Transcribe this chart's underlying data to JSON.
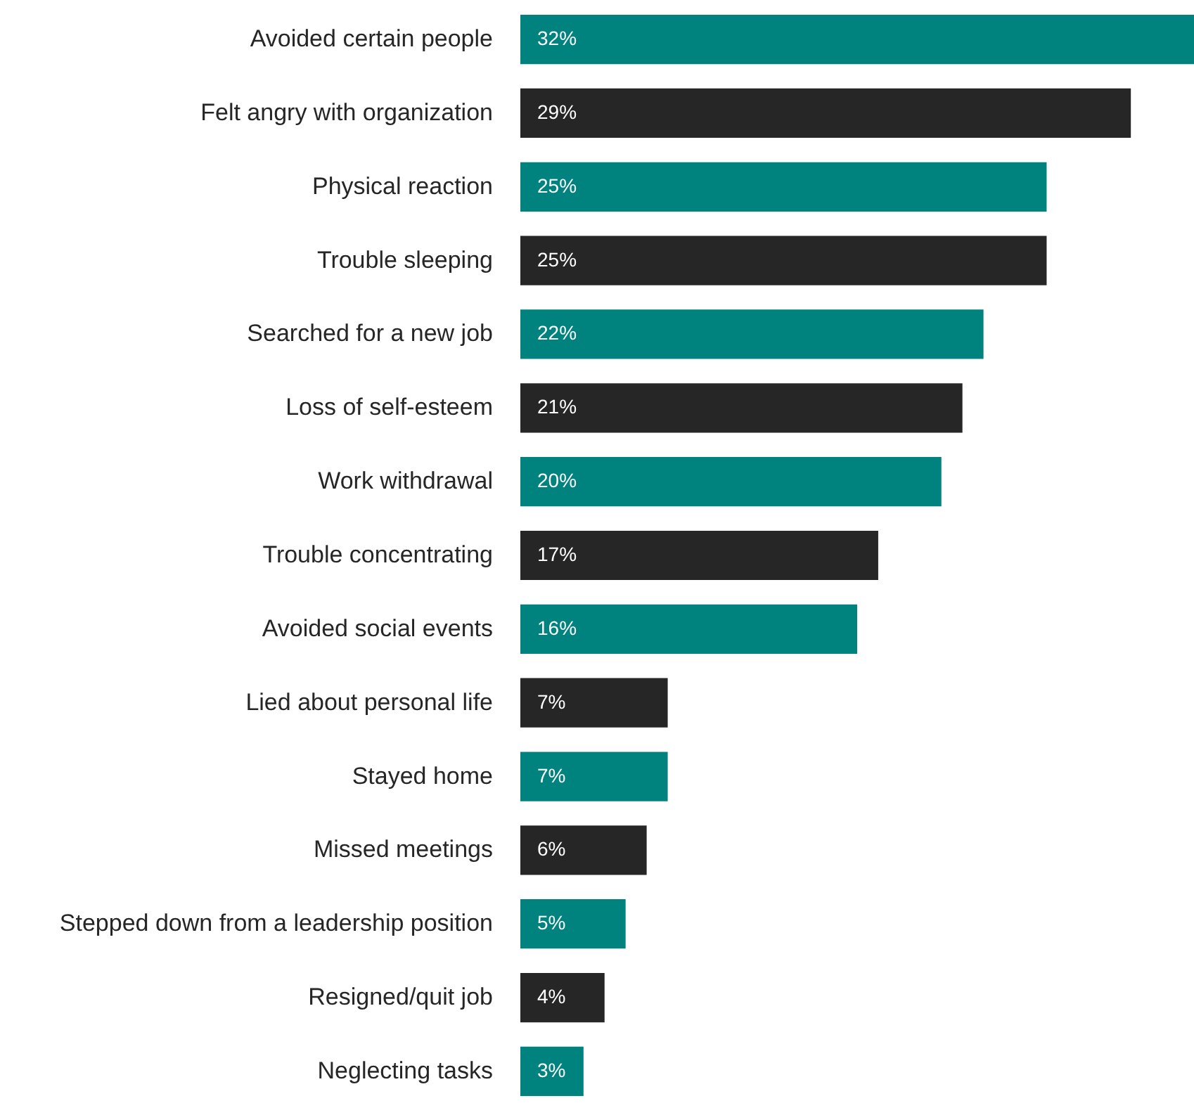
{
  "chart_data": {
    "type": "bar",
    "orientation": "horizontal",
    "categories": [
      "Avoided certain people",
      "Felt angry with organization",
      "Physical reaction",
      "Trouble sleeping",
      "Searched for a new job",
      "Loss of self-esteem",
      "Work withdrawal",
      "Trouble concentrating",
      "Avoided social events",
      "Lied about personal life",
      "Stayed home",
      "Missed meetings",
      "Stepped down from a leadership position",
      "Resigned/quit job",
      "Neglecting tasks"
    ],
    "values": [
      32,
      29,
      25,
      25,
      22,
      21,
      20,
      17,
      16,
      7,
      7,
      6,
      5,
      4,
      3
    ],
    "colors": [
      "#00827f",
      "#262626",
      "#00827f",
      "#262626",
      "#00827f",
      "#262626",
      "#00827f",
      "#262626",
      "#00827f",
      "#262626",
      "#00827f",
      "#262626",
      "#00827f",
      "#262626",
      "#00827f"
    ],
    "value_labels": [
      "32%",
      "29%",
      "25%",
      "25%",
      "22%",
      "21%",
      "20%",
      "17%",
      "16%",
      "7%",
      "7%",
      "6%",
      "5%",
      "4%",
      "3%"
    ],
    "xlim": [
      0,
      32
    ],
    "tick_labels": "y"
  }
}
